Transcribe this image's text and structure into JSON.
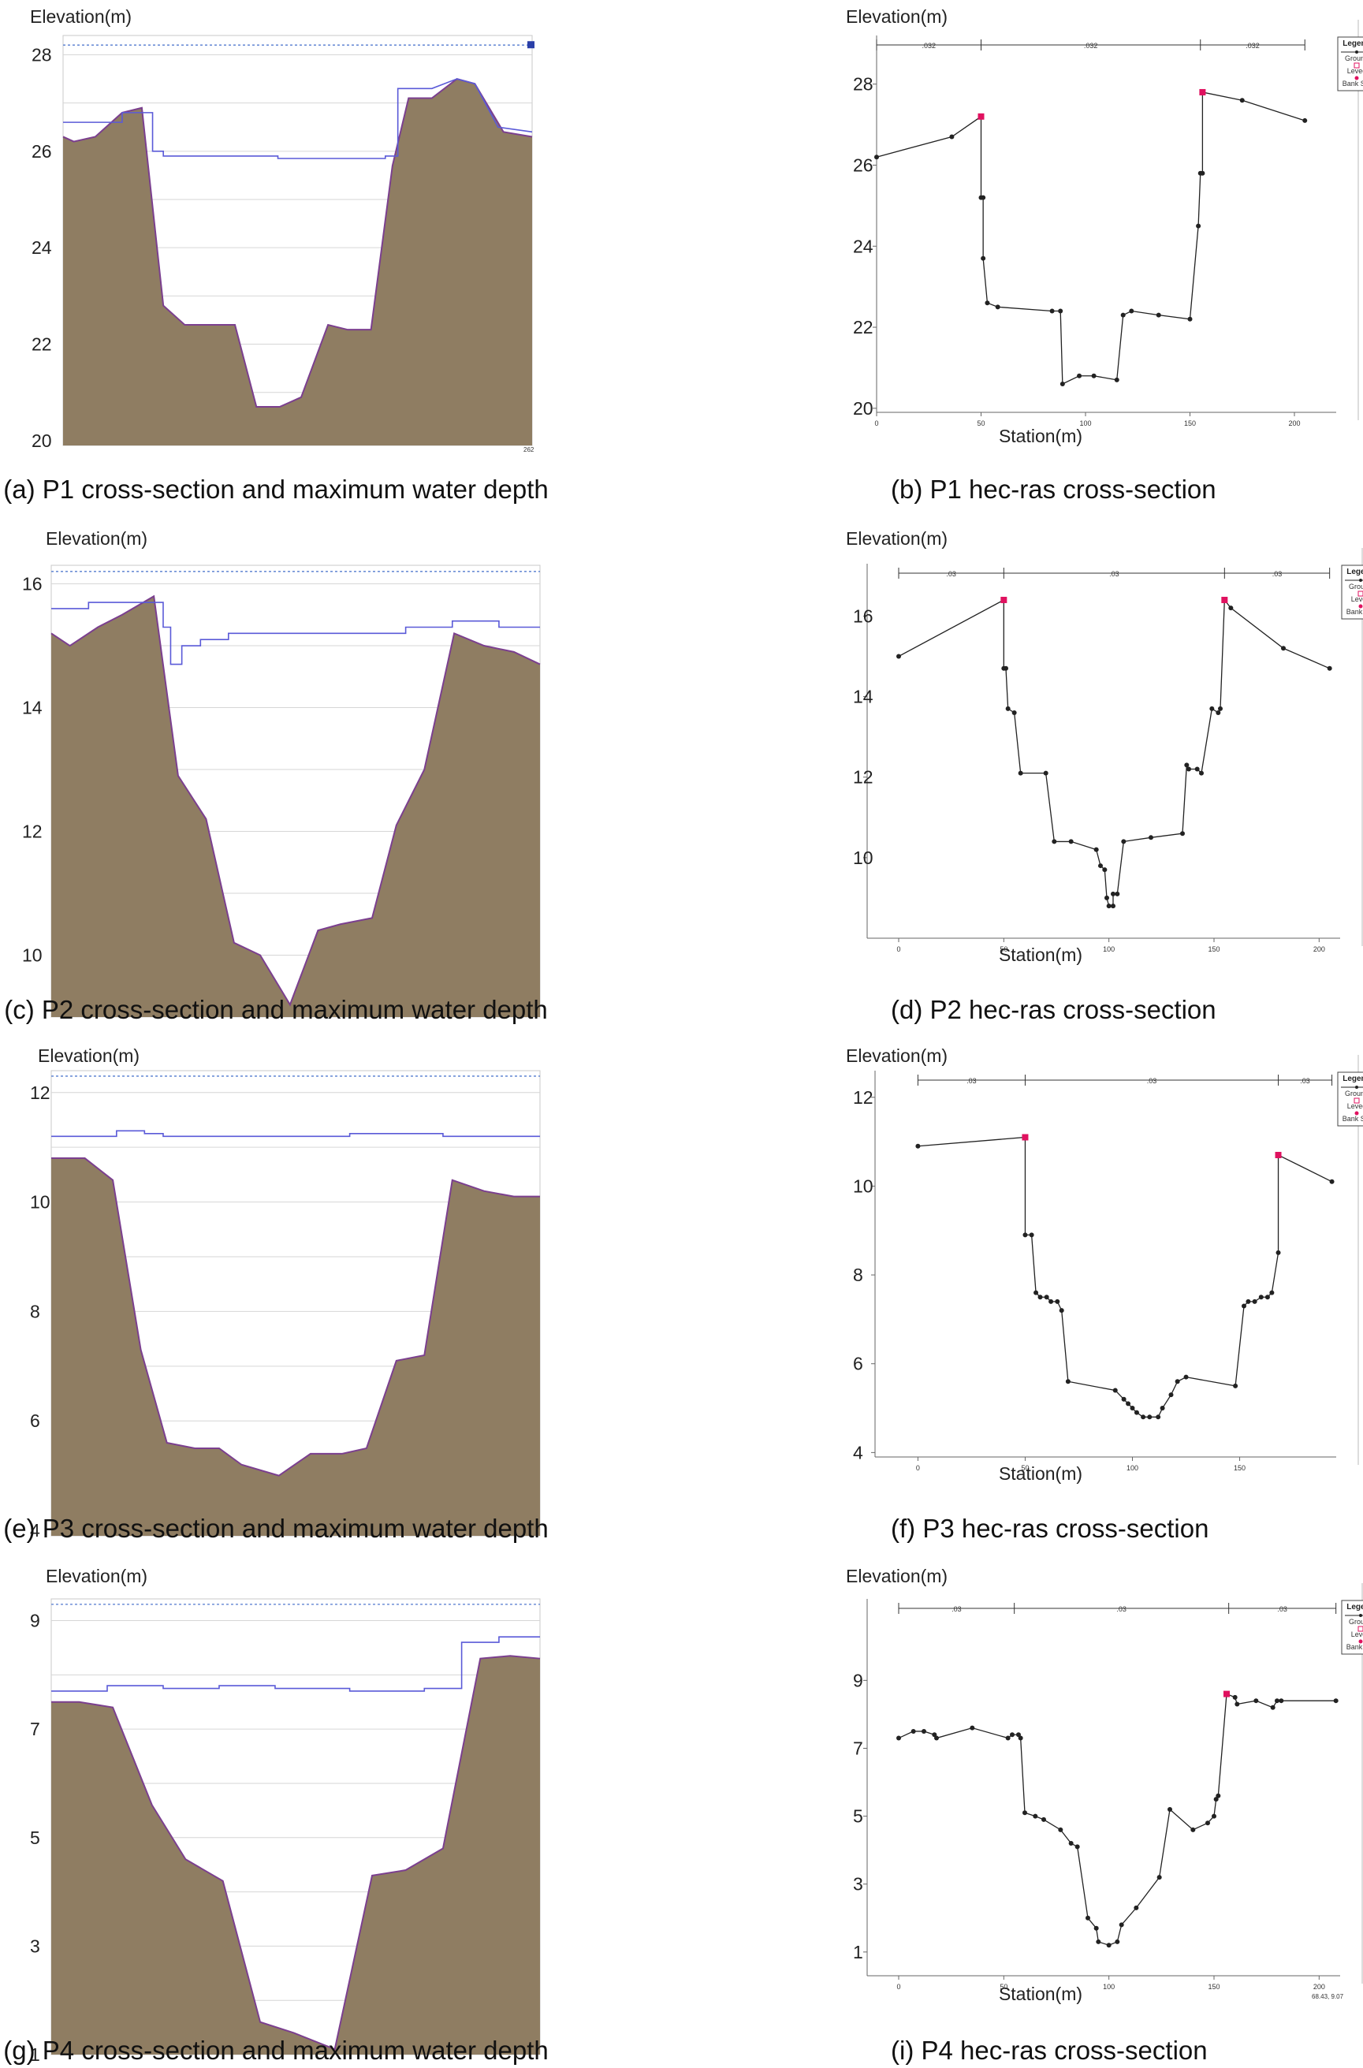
{
  "colors": {
    "ground_fill": "#8f7d62",
    "ground_edge": "#7b3f8f",
    "water_line": "#5a5ad8",
    "max_level": "#6d8fd6",
    "grid": "#d6d6d6",
    "hec_line": "#222222",
    "bank": "#e0115f"
  },
  "common": {
    "elevation_label": "Elevation(m)",
    "station_label": "Station(m)",
    "legend": {
      "title": "Legend",
      "items": [
        "Ground",
        "Levee",
        "Bank Sta"
      ]
    }
  },
  "captions": {
    "a": "(a) P1 cross-section and maximum water depth",
    "b": "(b) P1 hec-ras cross-section",
    "c": "(c) P2 cross-section and maximum water depth",
    "d": "(d) P2 hec-ras cross-section",
    "e": "(e) P3 cross-section and maximum water depth",
    "f": "(f) P3 hec-ras cross-section",
    "g": "(g) P4 cross-section and maximum water depth",
    "i": "(i) P4 hec-ras cross-section"
  },
  "corner_texts": {
    "a": "262",
    "i": "68.43, 9.07"
  },
  "chart_data": [
    {
      "id": "a",
      "type": "area",
      "title": "P1 cross-section and maximum water depth",
      "ylabel": "Elevation(m)",
      "xlim": [
        0,
        262
      ],
      "ylim": [
        19.9,
        28.4
      ],
      "yticks": [
        20,
        22,
        24,
        26,
        28
      ],
      "grid": true,
      "max_level": 28.2,
      "ground": [
        [
          0,
          26.3
        ],
        [
          6,
          26.2
        ],
        [
          18,
          26.3
        ],
        [
          33,
          26.8
        ],
        [
          44,
          26.9
        ],
        [
          56,
          22.8
        ],
        [
          68,
          22.4
        ],
        [
          80,
          22.4
        ],
        [
          96,
          22.4
        ],
        [
          108,
          20.7
        ],
        [
          121,
          20.7
        ],
        [
          133,
          20.9
        ],
        [
          148,
          22.4
        ],
        [
          159,
          22.3
        ],
        [
          172,
          22.3
        ],
        [
          184,
          25.7
        ],
        [
          193,
          27.1
        ],
        [
          206,
          27.1
        ],
        [
          220,
          27.5
        ],
        [
          230,
          27.4
        ],
        [
          246,
          26.4
        ],
        [
          262,
          26.3
        ]
      ],
      "water": [
        [
          0,
          26.6
        ],
        [
          33,
          26.6
        ],
        [
          33,
          26.8
        ],
        [
          50,
          26.8
        ],
        [
          50,
          26.0
        ],
        [
          56,
          26.0
        ],
        [
          56,
          25.9
        ],
        [
          96,
          25.9
        ],
        [
          96,
          25.9
        ],
        [
          120,
          25.9
        ],
        [
          120,
          25.85
        ],
        [
          180,
          25.85
        ],
        [
          180,
          25.9
        ],
        [
          187,
          25.9
        ],
        [
          187,
          27.3
        ],
        [
          206,
          27.3
        ],
        [
          220,
          27.5
        ],
        [
          230,
          27.4
        ],
        [
          243,
          26.5
        ],
        [
          262,
          26.4
        ]
      ]
    },
    {
      "id": "b",
      "type": "line",
      "title": "P1 hec-ras cross-section",
      "xlabel": "Station(m)",
      "ylabel": "Elevation(m)",
      "xlim": [
        0,
        220
      ],
      "ylim": [
        19.9,
        29.2
      ],
      "xticks": [
        0,
        50,
        100,
        150,
        200
      ],
      "yticks": [
        20,
        22,
        24,
        26,
        28
      ],
      "roughness": [
        ".032",
        ".032",
        ".032"
      ],
      "bank_stations": [
        50,
        155
      ],
      "points": [
        [
          0,
          26.2
        ],
        [
          36,
          26.7
        ],
        [
          50,
          27.2
        ],
        [
          50,
          25.2
        ],
        [
          51,
          25.2
        ],
        [
          51,
          23.7
        ],
        [
          53,
          22.6
        ],
        [
          58,
          22.5
        ],
        [
          84,
          22.4
        ],
        [
          88,
          22.4
        ],
        [
          89,
          20.6
        ],
        [
          97,
          20.8
        ],
        [
          104,
          20.8
        ],
        [
          115,
          20.7
        ],
        [
          118,
          22.3
        ],
        [
          122,
          22.4
        ],
        [
          135,
          22.3
        ],
        [
          150,
          22.2
        ],
        [
          154,
          24.5
        ],
        [
          155,
          25.8
        ],
        [
          156,
          25.8
        ],
        [
          156,
          27.8
        ],
        [
          175,
          27.6
        ],
        [
          205,
          27.1
        ]
      ],
      "levees": [
        [
          50,
          27.2
        ],
        [
          156,
          27.8
        ]
      ]
    },
    {
      "id": "c",
      "type": "area",
      "title": "P2 cross-section and maximum water depth",
      "ylabel": "Elevation(m)",
      "xlim": [
        0,
        262
      ],
      "ylim": [
        9.0,
        16.3
      ],
      "yticks": [
        10,
        12,
        14,
        16
      ],
      "grid": true,
      "max_level": 16.2,
      "ground": [
        [
          0,
          15.2
        ],
        [
          10,
          15.0
        ],
        [
          25,
          15.3
        ],
        [
          38,
          15.5
        ],
        [
          55,
          15.8
        ],
        [
          68,
          12.9
        ],
        [
          83,
          12.2
        ],
        [
          98,
          10.2
        ],
        [
          112,
          10.0
        ],
        [
          128,
          9.2
        ],
        [
          143,
          10.4
        ],
        [
          155,
          10.5
        ],
        [
          172,
          10.6
        ],
        [
          185,
          12.1
        ],
        [
          200,
          13.0
        ],
        [
          216,
          15.2
        ],
        [
          232,
          15.0
        ],
        [
          248,
          14.9
        ],
        [
          262,
          14.7
        ]
      ],
      "water": [
        [
          0,
          15.6
        ],
        [
          20,
          15.6
        ],
        [
          20,
          15.7
        ],
        [
          55,
          15.7
        ],
        [
          60,
          15.7
        ],
        [
          60,
          15.3
        ],
        [
          64,
          15.3
        ],
        [
          64,
          14.7
        ],
        [
          70,
          14.7
        ],
        [
          70,
          15.0
        ],
        [
          80,
          15.0
        ],
        [
          80,
          15.1
        ],
        [
          95,
          15.1
        ],
        [
          95,
          15.2
        ],
        [
          130,
          15.2
        ],
        [
          130,
          15.2
        ],
        [
          190,
          15.2
        ],
        [
          190,
          15.3
        ],
        [
          215,
          15.3
        ],
        [
          215,
          15.4
        ],
        [
          240,
          15.4
        ],
        [
          240,
          15.3
        ],
        [
          262,
          15.3
        ]
      ]
    },
    {
      "id": "d",
      "type": "line",
      "title": "P2 hec-ras cross-section",
      "xlabel": "Station(m)",
      "ylabel": "Elevation(m)",
      "xlim": [
        -15,
        210
      ],
      "ylim": [
        8.0,
        17.3
      ],
      "xticks": [
        0,
        50,
        100,
        150,
        200
      ],
      "yticks": [
        10,
        12,
        14,
        16
      ],
      "roughness": [
        ".03",
        ".03",
        ".03"
      ],
      "bank_stations": [
        50,
        155
      ],
      "points": [
        [
          0,
          15.0
        ],
        [
          50,
          16.4
        ],
        [
          50,
          14.7
        ],
        [
          51,
          14.7
        ],
        [
          52,
          13.7
        ],
        [
          55,
          13.6
        ],
        [
          58,
          12.1
        ],
        [
          70,
          12.1
        ],
        [
          74,
          10.4
        ],
        [
          82,
          10.4
        ],
        [
          94,
          10.2
        ],
        [
          96,
          9.8
        ],
        [
          98,
          9.7
        ],
        [
          99,
          9.0
        ],
        [
          100,
          8.8
        ],
        [
          102,
          8.8
        ],
        [
          102,
          9.1
        ],
        [
          104,
          9.1
        ],
        [
          107,
          10.4
        ],
        [
          120,
          10.5
        ],
        [
          135,
          10.6
        ],
        [
          137,
          12.3
        ],
        [
          138,
          12.2
        ],
        [
          142,
          12.2
        ],
        [
          144,
          12.1
        ],
        [
          149,
          13.7
        ],
        [
          152,
          13.6
        ],
        [
          153,
          13.7
        ],
        [
          155,
          16.4
        ],
        [
          158,
          16.2
        ],
        [
          183,
          15.2
        ],
        [
          205,
          14.7
        ]
      ],
      "levees": [
        [
          50,
          16.4
        ],
        [
          155,
          16.4
        ]
      ]
    },
    {
      "id": "e",
      "type": "area",
      "title": "P3 cross-section and maximum water depth",
      "ylabel": "Elevation(m)",
      "xlim": [
        0,
        262
      ],
      "ylim": [
        3.9,
        12.4
      ],
      "yticks": [
        4,
        6,
        8,
        10,
        12
      ],
      "grid": true,
      "max_level": 12.3,
      "ground": [
        [
          0,
          10.8
        ],
        [
          18,
          10.8
        ],
        [
          33,
          10.4
        ],
        [
          48,
          7.3
        ],
        [
          62,
          5.6
        ],
        [
          77,
          5.5
        ],
        [
          90,
          5.5
        ],
        [
          102,
          5.2
        ],
        [
          122,
          5.0
        ],
        [
          139,
          5.4
        ],
        [
          156,
          5.4
        ],
        [
          169,
          5.5
        ],
        [
          185,
          7.1
        ],
        [
          200,
          7.2
        ],
        [
          215,
          10.4
        ],
        [
          232,
          10.2
        ],
        [
          248,
          10.1
        ],
        [
          262,
          10.1
        ]
      ],
      "water": [
        [
          0,
          11.2
        ],
        [
          35,
          11.2
        ],
        [
          35,
          11.3
        ],
        [
          50,
          11.3
        ],
        [
          50,
          11.25
        ],
        [
          60,
          11.25
        ],
        [
          60,
          11.2
        ],
        [
          120,
          11.2
        ],
        [
          160,
          11.2
        ],
        [
          160,
          11.25
        ],
        [
          210,
          11.25
        ],
        [
          210,
          11.2
        ],
        [
          262,
          11.2
        ]
      ]
    },
    {
      "id": "f",
      "type": "line",
      "title": "P3 hec-ras cross-section",
      "xlabel": "Station(m)",
      "ylabel": "Elevation(m)",
      "xlim": [
        -20,
        195
      ],
      "ylim": [
        3.9,
        12.6
      ],
      "xticks": [
        0,
        50,
        100,
        150
      ],
      "yticks": [
        4,
        6,
        8,
        10,
        12
      ],
      "roughness": [
        ".03",
        ".03",
        ".03"
      ],
      "bank_stations": [
        50,
        168
      ],
      "points": [
        [
          0,
          10.9
        ],
        [
          50,
          11.1
        ],
        [
          50,
          8.9
        ],
        [
          53,
          8.9
        ],
        [
          55,
          7.6
        ],
        [
          57,
          7.5
        ],
        [
          60,
          7.5
        ],
        [
          62,
          7.4
        ],
        [
          65,
          7.4
        ],
        [
          67,
          7.2
        ],
        [
          70,
          5.6
        ],
        [
          92,
          5.4
        ],
        [
          96,
          5.2
        ],
        [
          98,
          5.1
        ],
        [
          100,
          5.0
        ],
        [
          102,
          4.9
        ],
        [
          105,
          4.8
        ],
        [
          108,
          4.8
        ],
        [
          112,
          4.8
        ],
        [
          114,
          5.0
        ],
        [
          118,
          5.3
        ],
        [
          121,
          5.6
        ],
        [
          125,
          5.7
        ],
        [
          148,
          5.5
        ],
        [
          152,
          7.3
        ],
        [
          154,
          7.4
        ],
        [
          157,
          7.4
        ],
        [
          160,
          7.5
        ],
        [
          163,
          7.5
        ],
        [
          165,
          7.6
        ],
        [
          168,
          8.5
        ],
        [
          168,
          10.7
        ],
        [
          193,
          10.1
        ]
      ],
      "levees": [
        [
          50,
          11.1
        ],
        [
          168,
          10.7
        ]
      ]
    },
    {
      "id": "g",
      "type": "area",
      "title": "P4 cross-section and maximum water depth",
      "ylabel": "Elevation(m)",
      "xlim": [
        0,
        262
      ],
      "ylim": [
        1.0,
        9.4
      ],
      "yticks": [
        1,
        3,
        5,
        7,
        9
      ],
      "grid": true,
      "max_level": 9.3,
      "ground": [
        [
          0,
          7.5
        ],
        [
          15,
          7.5
        ],
        [
          33,
          7.4
        ],
        [
          54,
          5.6
        ],
        [
          72,
          4.6
        ],
        [
          92,
          4.2
        ],
        [
          112,
          1.6
        ],
        [
          130,
          1.4
        ],
        [
          152,
          1.1
        ],
        [
          172,
          4.3
        ],
        [
          190,
          4.4
        ],
        [
          210,
          4.8
        ],
        [
          230,
          8.3
        ],
        [
          246,
          8.35
        ],
        [
          262,
          8.3
        ]
      ],
      "water": [
        [
          0,
          7.7
        ],
        [
          30,
          7.7
        ],
        [
          30,
          7.8
        ],
        [
          60,
          7.8
        ],
        [
          60,
          7.75
        ],
        [
          90,
          7.75
        ],
        [
          90,
          7.8
        ],
        [
          120,
          7.8
        ],
        [
          120,
          7.75
        ],
        [
          160,
          7.75
        ],
        [
          160,
          7.7
        ],
        [
          200,
          7.7
        ],
        [
          200,
          7.75
        ],
        [
          220,
          7.75
        ],
        [
          220,
          8.6
        ],
        [
          240,
          8.6
        ],
        [
          240,
          8.7
        ],
        [
          262,
          8.7
        ]
      ]
    },
    {
      "id": "i",
      "type": "line",
      "title": "P4 hec-ras cross-section",
      "xlabel": "Station(m)",
      "ylabel": "Elevation(m)",
      "xlim": [
        -15,
        210
      ],
      "ylim": [
        0.3,
        11.4
      ],
      "xticks": [
        0,
        50,
        100,
        150,
        200
      ],
      "yticks": [
        1,
        3,
        5,
        7,
        9
      ],
      "roughness": [
        ".03",
        ".03",
        ".03"
      ],
      "bank_stations": [
        55,
        157
      ],
      "points": [
        [
          0,
          7.3
        ],
        [
          7,
          7.5
        ],
        [
          12,
          7.5
        ],
        [
          17,
          7.4
        ],
        [
          18,
          7.3
        ],
        [
          35,
          7.6
        ],
        [
          52,
          7.3
        ],
        [
          54,
          7.4
        ],
        [
          57,
          7.4
        ],
        [
          58,
          7.3
        ],
        [
          60,
          5.1
        ],
        [
          65,
          5.0
        ],
        [
          69,
          4.9
        ],
        [
          77,
          4.6
        ],
        [
          82,
          4.2
        ],
        [
          85,
          4.1
        ],
        [
          90,
          2.0
        ],
        [
          94,
          1.7
        ],
        [
          95,
          1.3
        ],
        [
          100,
          1.2
        ],
        [
          104,
          1.3
        ],
        [
          106,
          1.8
        ],
        [
          113,
          2.3
        ],
        [
          124,
          3.2
        ],
        [
          129,
          5.2
        ],
        [
          140,
          4.6
        ],
        [
          147,
          4.8
        ],
        [
          150,
          5.0
        ],
        [
          151,
          5.5
        ],
        [
          152,
          5.6
        ],
        [
          156,
          8.6
        ],
        [
          160,
          8.5
        ],
        [
          161,
          8.3
        ],
        [
          170,
          8.4
        ],
        [
          178,
          8.2
        ],
        [
          180,
          8.4
        ],
        [
          182,
          8.4
        ],
        [
          208,
          8.4
        ]
      ],
      "levees": [
        [
          156,
          8.6
        ]
      ]
    }
  ]
}
